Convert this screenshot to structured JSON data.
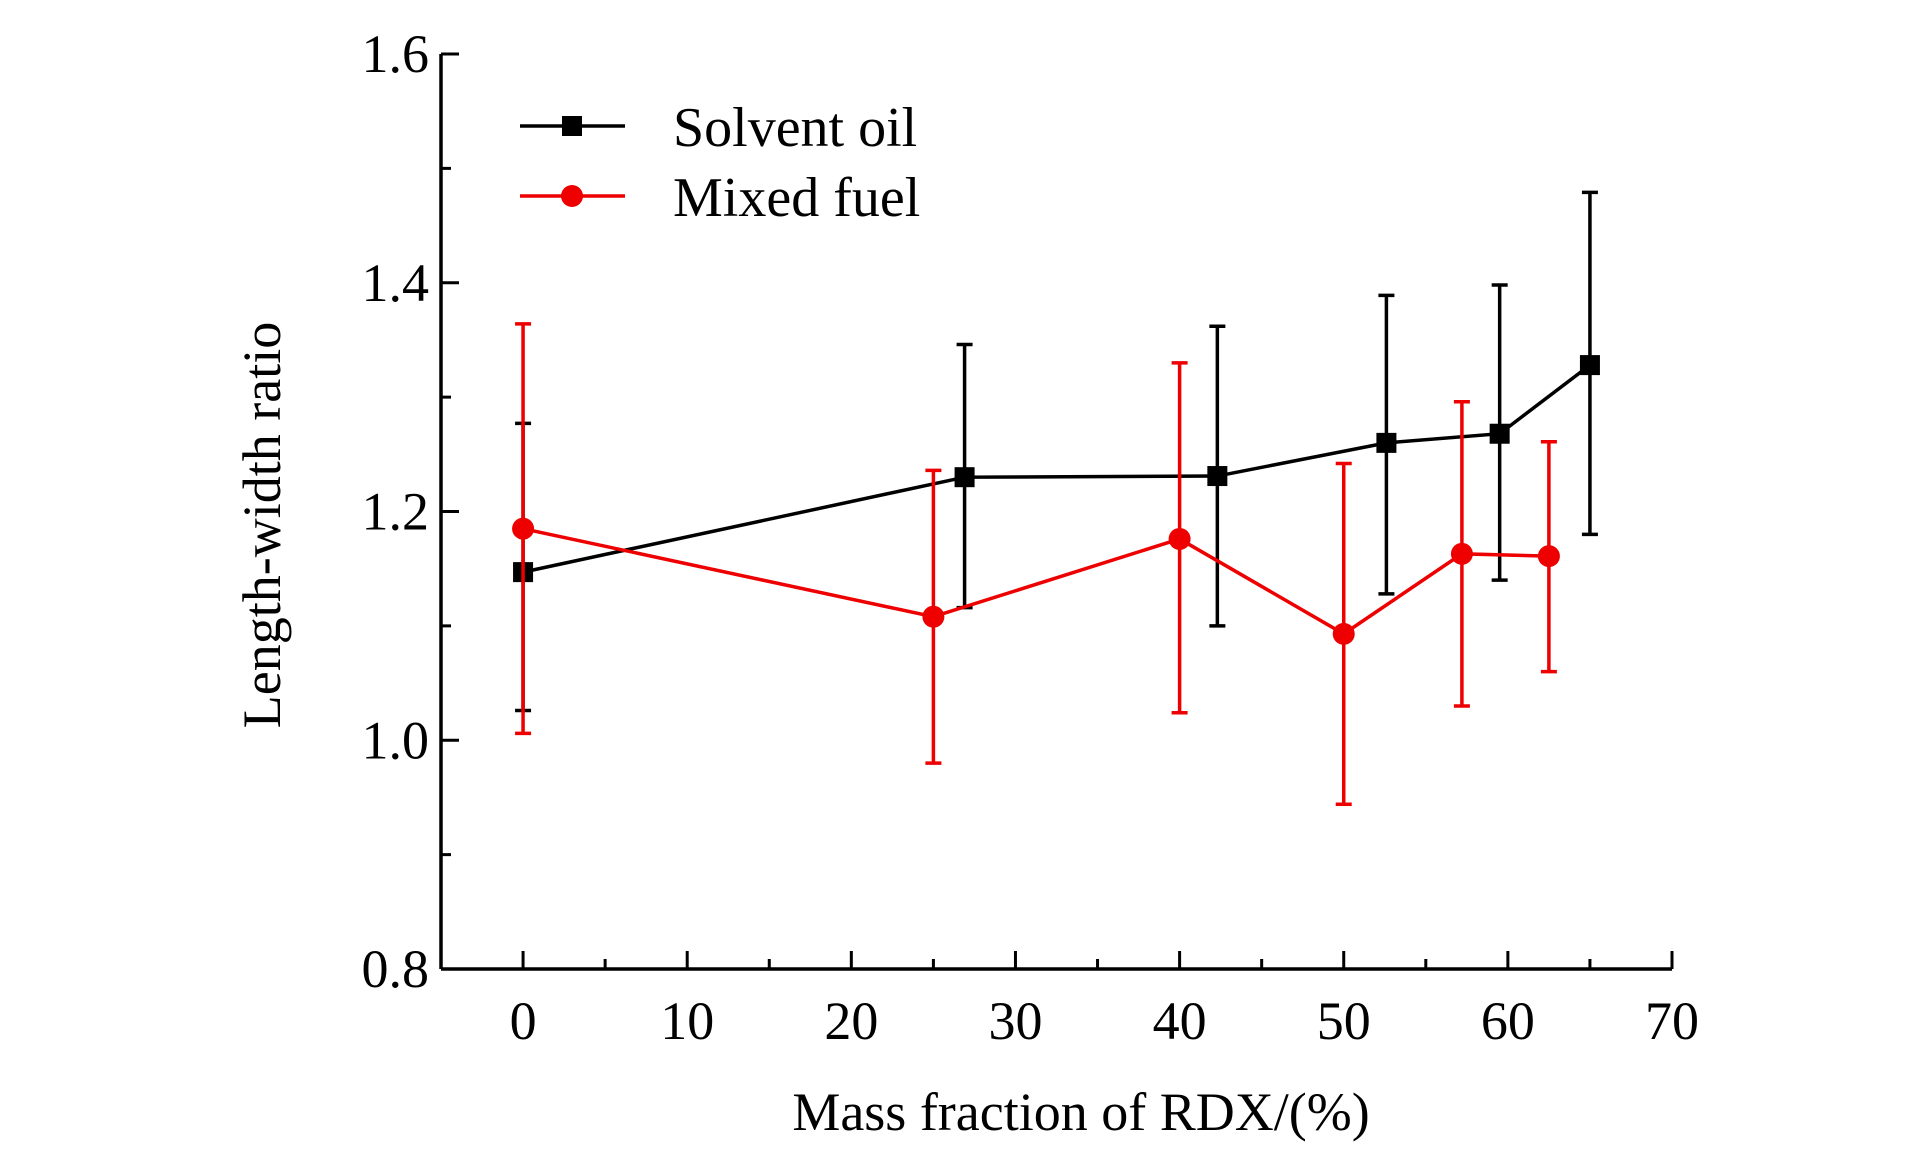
{
  "chart_data": {
    "type": "line",
    "title": "",
    "xlabel": "Mass fraction of RDX/(%)",
    "ylabel": "Length-width ratio",
    "xlim": [
      -5,
      70
    ],
    "ylim": [
      0.8,
      1.6
    ],
    "xticks": [
      0,
      10,
      20,
      30,
      40,
      50,
      60,
      70
    ],
    "yticks": [
      0.8,
      1.0,
      1.2,
      1.4,
      1.6
    ],
    "xtick_labels": [
      "0",
      "10",
      "20",
      "30",
      "40",
      "50",
      "60",
      "70"
    ],
    "ytick_labels": [
      "0.8",
      "1.0",
      "1.2",
      "1.4",
      "1.6"
    ],
    "grid": false,
    "legend": "top-left",
    "series": [
      {
        "name": "Solvent oil",
        "color": "#000000",
        "marker": "square",
        "x": [
          0,
          26.9,
          42.3,
          52.6,
          59.5,
          65.0
        ],
        "y": [
          1.147,
          1.23,
          1.231,
          1.26,
          1.268,
          1.328
        ],
        "err_upper": [
          1.277,
          1.346,
          1.362,
          1.389,
          1.398,
          1.479
        ],
        "err_lower": [
          1.026,
          1.116,
          1.1,
          1.128,
          1.14,
          1.18
        ]
      },
      {
        "name": "Mixed fuel",
        "color": "#ee0000",
        "marker": "circle",
        "x": [
          0,
          25,
          40,
          50,
          57.2,
          62.5
        ],
        "y": [
          1.185,
          1.108,
          1.176,
          1.093,
          1.163,
          1.161
        ],
        "err_upper": [
          1.364,
          1.236,
          1.33,
          1.242,
          1.296,
          1.261
        ],
        "err_lower": [
          1.006,
          0.98,
          1.024,
          0.944,
          1.03,
          1.06
        ]
      }
    ]
  }
}
